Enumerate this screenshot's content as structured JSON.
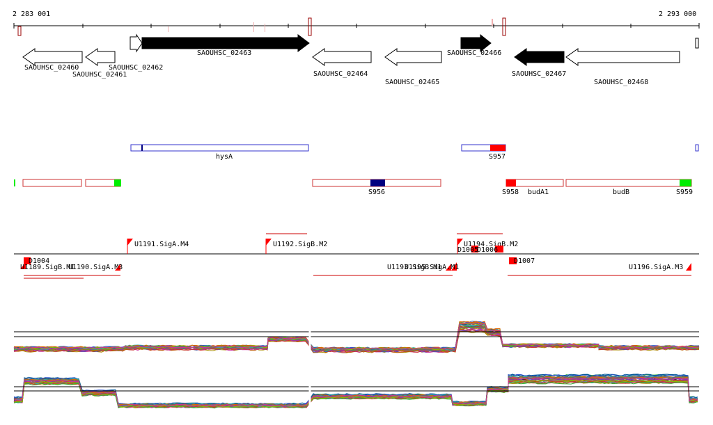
{
  "coords": {
    "start_label": "2 283 001",
    "end_label": "2 293 000"
  },
  "colors": {
    "tick": "#990000",
    "tick_light": "#f0b0b0",
    "feature_outline": "#cc3333",
    "promoter_outline": "#cc0000",
    "promoter_fill": "#ff0000",
    "blue_outline": "#3333cc",
    "navy": "#000080",
    "green": "#00ee00",
    "gene_black": "#000000"
  },
  "genes": [
    {
      "name": "SAOUHSC_02460",
      "strand": "-",
      "filled": false
    },
    {
      "name": "SAOUHSC_02461",
      "strand": "-",
      "filled": false
    },
    {
      "name": "SAOUHSC_02462",
      "strand": "+",
      "filled": false
    },
    {
      "name": "SAOUHSC_02463",
      "strand": "+",
      "filled": true
    },
    {
      "name": "SAOUHSC_02464",
      "strand": "-",
      "filled": false
    },
    {
      "name": "SAOUHSC_02465",
      "strand": "-",
      "filled": false
    },
    {
      "name": "SAOUHSC_02466",
      "strand": "+",
      "filled": true
    },
    {
      "name": "SAOUHSC_02467",
      "strand": "-",
      "filled": true
    },
    {
      "name": "SAOUHSC_02468",
      "strand": "-",
      "filled": false
    }
  ],
  "gene_symbols": [
    "hysA",
    "budA1",
    "budB"
  ],
  "segments": [
    "S956",
    "S957",
    "S958",
    "S959"
  ],
  "promoters": [
    "U1189.SigB.M1",
    "U1190.SigA.M3",
    "U1191.SigA.M4",
    "U1192.SigB.M2",
    "U1193.SigB.M1",
    "U1195.SigA.M1",
    "U1194.SigB.M2",
    "U1196.SigA.M3"
  ],
  "d_features": [
    "D1004",
    "D1005",
    "D1006",
    "D1007"
  ]
}
